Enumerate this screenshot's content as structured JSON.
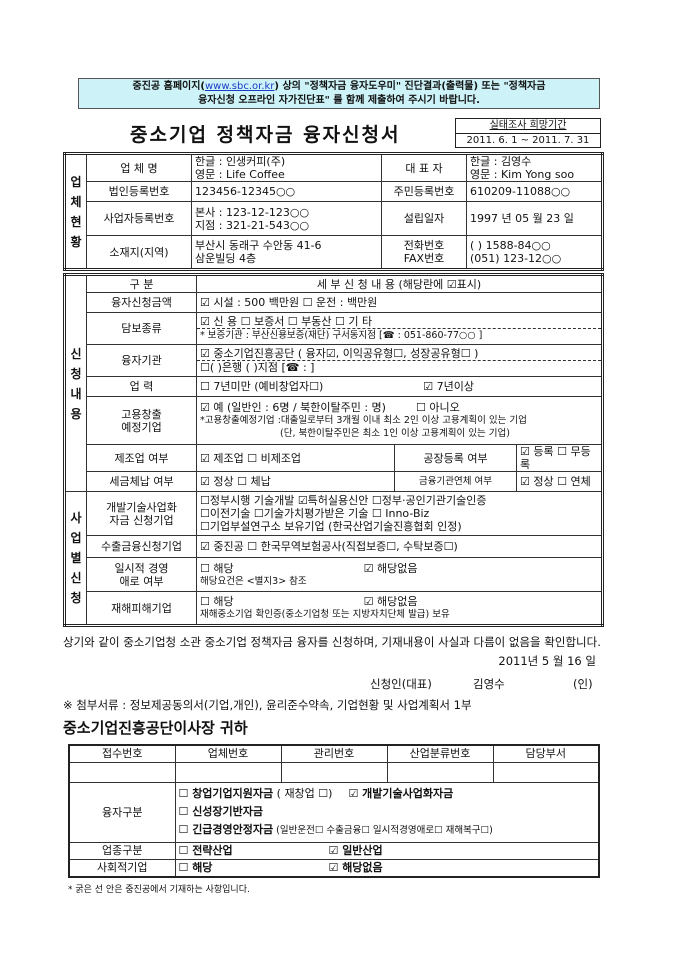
{
  "notice": {
    "line1_a": "중진공 홈페이지(",
    "url": "www.sbc.or.kr",
    "line1_b": ") 상의 \"정책자금 융자도우미\" 진단결과(출력물) 또는 \"정책자금",
    "line2": "융자신청 오프라인 자가진단표\" 를 함께 제출하여 주시기 바랍니다."
  },
  "title": "중소기업 정책자금 융자신청서",
  "survey": {
    "label": "실태조사 희망기간",
    "period": "2011. 6. 1 ~ 2011. 7. 31"
  },
  "company": {
    "section": "업체현황",
    "name_label": "업 체 명",
    "name_kr": "한글 : 인생커피(주)",
    "name_en": "영문 : Life Coffee",
    "rep_label": "대 표 자",
    "rep_kr": "한글 : 김영수",
    "rep_en": "영문 : Kim Yong soo",
    "corp_no_label": "법인등록번호",
    "corp_no": "123456-12345○○",
    "resident_no_label": "주민등록번호",
    "resident_no": "610209-11088○○",
    "biz_no_label": "사업자등록번호",
    "biz_no_hq": "본사 : 123-12-123○○",
    "biz_no_branch": "지점 : 321-21-543○○",
    "est_label": "설립일자",
    "est_date": "1997 년 05 월 23 일",
    "addr_label": "소재지(지역)",
    "addr1": "부산시 동래구 수안동 41-6",
    "addr2": "삼운빌딩 4층",
    "tel_label": "전화번호",
    "fax_label": "FAX번호",
    "tel": "(    ) 1588-84○○",
    "fax": "(051)  123-12○○"
  },
  "application": {
    "section": "신청내용",
    "header_label": "구  분",
    "header_detail": "세 부 신 청 내 용 (해당란에 ☑표시)",
    "amount_label": "융자신청금액",
    "amount": "☑ 시설 :     500 백만원      ☐ 운전 :            백만원",
    "collateral_label": "담보종류",
    "collateral": "☑ 신 용        ☐ 보증서        ☐ 부동산        ☐ 기 타",
    "guarantor": "* 보증기관 : 부산신용보증(재단) 구서동지점   [☎ : 051-860-77○○ ]",
    "lender_label": "융자기관",
    "lender1": "☑ 중소기업진흥공단 ( 융자☑,  이익공유형☐,  성장공유형☐ )",
    "lender2": "☐(       )은행 (       )지점                              [☎ :                    ]",
    "years_label": "업    력",
    "years_a": "☐ 7년미만 (예비창업자☐)",
    "years_b": "☑ 7년이상",
    "employ_label1": "고용창출",
    "employ_label2": "예정기업",
    "employ1": "☑ 예 (일반인 : 6명 / 북한이탈주민 :    명)",
    "employ1b": "☐ 아니오",
    "employ2": "*고용창출예정기업 :대출일로부터 3개월 이내 최소 2인 이상 고용계획이 있는 기업",
    "employ3": "(단, 북한이탈주민은 최소 1인 이상 고용계획이 있는 기업)",
    "mfg_label": "제조업 여부",
    "mfg": "☑ 제조업   ☐ 비제조업",
    "factory_label": "공장등록 여부",
    "factory": "☑ 등록    ☐ 무등록",
    "tax_label": "세금체납 여부",
    "tax": "☑ 정상      ☐ 체납",
    "overdue_label": "금융기관연체 여부",
    "overdue": "☑ 정상    ☐ 연체"
  },
  "business": {
    "section": "사업별신청",
    "tech_label1": "개발기술사업화",
    "tech_label2": "자금 신청기업",
    "tech1": "☐정부시행 기술개발  ☑특허실용신안  ☐정부·공인기관기술인증",
    "tech2": "☐이전기술       ☐기술가치평가받은 기술      ☐ Inno-Biz",
    "tech3": "☐기업부설연구소 보유기업 (한국산업기술진흥협회 인정)",
    "export_label": "수출금융신청기업",
    "export": "☑ 중진공        ☐ 한국무역보험공사(직접보증☐, 수탁보증☐)",
    "temp_label1": "일시적 경영",
    "temp_label2": "애로 여부",
    "temp_a": "☐ 해당",
    "temp_b": "☑ 해당없음",
    "temp_note": "해당요건은 <별지3> 참조",
    "disaster_label": "재해피해기업",
    "disaster_a": "☐ 해당",
    "disaster_b": "☑ 해당없음",
    "disaster_note": "재해중소기업 확인증(중소기업청 또는 지방자치단체 발급) 보유"
  },
  "declaration": {
    "text": "상기와 같이 중소기업청 소관 중소기업 정책자금 융자를 신청하며, 기재내용이 사실과 다름이 없음을 확인합니다.",
    "date": "2011년  5  월  16  일",
    "applicant_label": "신청인(대표)",
    "applicant": "김영수",
    "seal": "(인)"
  },
  "attachments": "※ 첨부서류 : 정보제공동의서(기업,개인), 윤리준수약속, 기업현황 및 사업계획서 1부",
  "addressee": "중소기업진흥공단이사장 귀하",
  "office": {
    "headers": [
      "접수번호",
      "업체번호",
      "관리번호",
      "산업분류번호",
      "담당부서"
    ],
    "loan_type_label": "융자구분",
    "loan1a": "☐ 창업기업지원자금",
    "loan1b": " ( 재창업 ☐)",
    "loan1c": "☑ 개발기술사업화자금",
    "loan2": "☐ 신성장기반자금",
    "loan3a": "☐ 긴급경영안정자금",
    "loan3b": " (일반운전☐  수출금융☐  일시적경영애로☐  재해복구☐)",
    "industry_label": "업종구분",
    "industry_a": "☐ 전략산업",
    "industry_b": "☑ 일반산업",
    "social_label": "사회적기업",
    "social_a": "☐ 해당",
    "social_b": "☑ 해당없음"
  },
  "footnote": "* 굵은 선 안은 중진공에서 기재하는 사항입니다."
}
